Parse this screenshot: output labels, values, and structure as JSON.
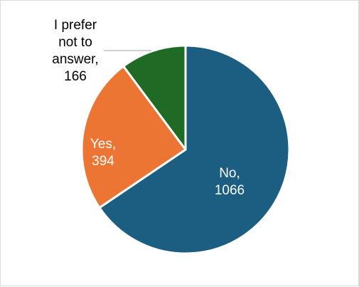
{
  "chart_data": {
    "type": "pie",
    "title": "",
    "categories": [
      "No",
      "Yes",
      "I prefer not to answer"
    ],
    "values": [
      1066,
      394,
      166
    ],
    "colors": [
      "#1b5e82",
      "#ec7534",
      "#1f6b26"
    ],
    "label_colors": [
      "#ffffff",
      "#ffffff",
      "#000000"
    ],
    "data_labels": [
      [
        "No,",
        "1066"
      ],
      [
        "Yes,",
        "394"
      ],
      [
        "I prefer",
        "not to",
        "answer,",
        "166"
      ]
    ],
    "legend": "none",
    "start_angle": "12 o'clock",
    "direction": "clockwise"
  }
}
